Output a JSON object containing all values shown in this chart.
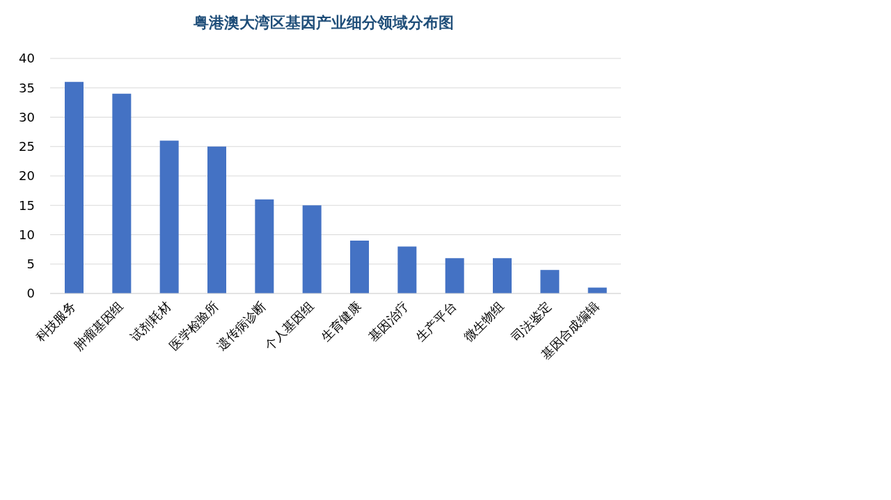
{
  "chart_data": {
    "type": "bar",
    "title": "粤港澳大湾区基因产业细分领域分布图",
    "categories": [
      "科技服务",
      "肿瘤基因组",
      "试剂耗材",
      "医学检验所",
      "遗传病诊断",
      "个人基因组",
      "生育健康",
      "基因治疗",
      "生产平台",
      "微生物组",
      "司法鉴定",
      "基因合成编辑"
    ],
    "values": [
      36,
      34,
      26,
      25,
      16,
      15,
      9,
      8,
      6,
      6,
      4,
      1
    ],
    "color": "#4472c4",
    "ylim": [
      0,
      40
    ],
    "yticks": [
      0,
      5,
      10,
      15,
      20,
      25,
      30,
      35,
      40
    ],
    "grid": "y"
  }
}
